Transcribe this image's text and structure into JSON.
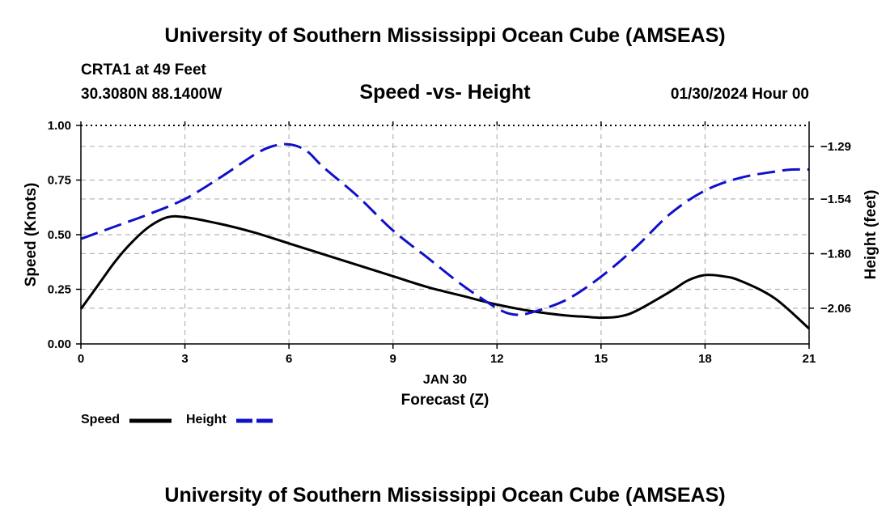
{
  "header": {
    "title": "University of Southern Mississippi Ocean Cube (AMSEAS)",
    "station": "CRTA1 at 49 Feet",
    "coords": "30.3080N  88.1400W",
    "subtitle": "Speed -vs- Height",
    "datetime": "01/30/2024 Hour 00"
  },
  "footer": {
    "title": "University of Southern Mississippi Ocean Cube (AMSEAS)"
  },
  "legend": {
    "speed_label": "Speed",
    "height_label": "Height"
  },
  "colors": {
    "speed": "#000000",
    "height": "#1010c8",
    "grid": "#b4b4b4"
  },
  "chart_data": {
    "type": "line",
    "title": "Speed -vs- Height",
    "xlabel": "Forecast (Z)",
    "xlabel_date": "JAN 30",
    "ylabel_left": "Speed (Knots)",
    "ylabel_right": "Height (feet)",
    "xlim": [
      0,
      21
    ],
    "ylim_left": [
      0,
      1.0
    ],
    "ylim_right": [
      -2.23,
      -1.19
    ],
    "x_ticks": [
      0,
      3,
      6,
      9,
      12,
      15,
      18,
      21
    ],
    "y_ticks_left": [
      0.0,
      0.25,
      0.5,
      0.75,
      1.0
    ],
    "y_tick_labels_left": [
      "0.00",
      "0.25",
      "0.50",
      "0.75",
      "1.00"
    ],
    "y_ticks_right": [
      -2.06,
      -1.8,
      -1.54,
      -1.29
    ],
    "y_tick_labels_right": [
      "−2.06",
      "−1.80",
      "−1.54",
      "−1.29"
    ],
    "grid": true,
    "legend_position": "bottom-left",
    "series": [
      {
        "name": "Speed",
        "axis": "left",
        "style": "solid",
        "x": [
          0,
          0.5,
          1,
          1.5,
          2,
          2.5,
          3,
          4,
          5,
          6,
          7,
          8,
          9,
          10,
          11,
          12,
          13,
          14,
          14.5,
          15,
          15.5,
          16,
          17,
          17.5,
          18,
          18.5,
          19,
          20,
          21
        ],
        "values": [
          0.16,
          0.27,
          0.38,
          0.47,
          0.54,
          0.58,
          0.58,
          0.55,
          0.51,
          0.46,
          0.41,
          0.36,
          0.31,
          0.26,
          0.22,
          0.18,
          0.15,
          0.13,
          0.125,
          0.12,
          0.125,
          0.15,
          0.24,
          0.29,
          0.315,
          0.31,
          0.29,
          0.21,
          0.07
        ]
      },
      {
        "name": "Height",
        "axis": "right",
        "style": "dashed",
        "x": [
          0,
          1,
          2,
          3,
          4,
          5,
          5.5,
          6,
          6.5,
          7,
          8,
          9,
          10,
          11,
          12,
          12.5,
          13,
          14,
          15,
          16,
          17,
          18,
          19,
          20,
          20.5,
          21
        ],
        "values": [
          -1.73,
          -1.67,
          -1.61,
          -1.54,
          -1.44,
          -1.33,
          -1.29,
          -1.28,
          -1.31,
          -1.39,
          -1.53,
          -1.69,
          -1.82,
          -1.95,
          -2.06,
          -2.09,
          -2.08,
          -2.02,
          -1.91,
          -1.77,
          -1.61,
          -1.5,
          -1.44,
          -1.41,
          -1.4,
          -1.4
        ]
      }
    ]
  }
}
